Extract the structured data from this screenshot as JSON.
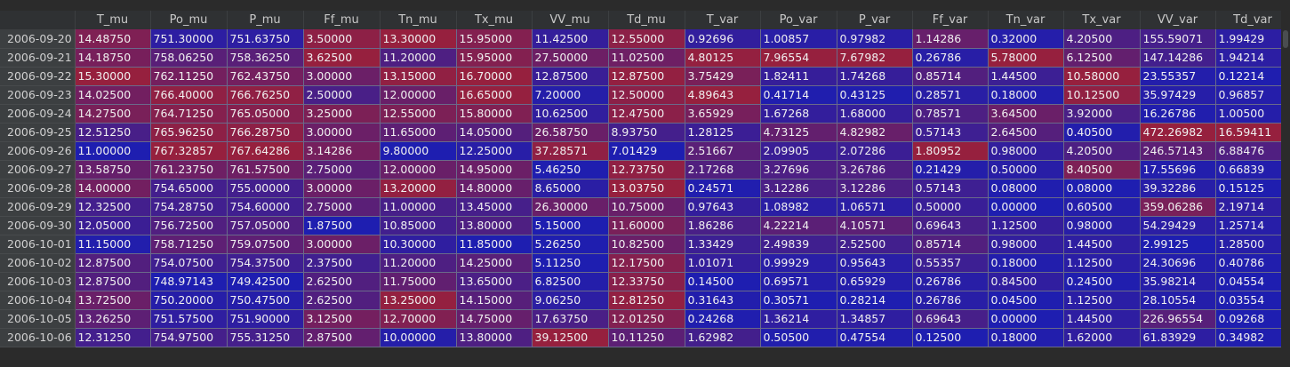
{
  "table": {
    "index_header": "",
    "columns": [
      "T_mu",
      "Po_mu",
      "P_mu",
      "Ff_mu",
      "Tn_mu",
      "Tx_mu",
      "VV_mu",
      "Td_mu",
      "T_var",
      "Po_var",
      "P_var",
      "Ff_var",
      "Tn_var",
      "Tx_var",
      "VV_var",
      "Td_var"
    ],
    "rows": [
      {
        "date": "2006-09-20",
        "values": [
          "14.48750",
          "751.30000",
          "751.63750",
          "3.50000",
          "13.30000",
          "15.95000",
          "11.42500",
          "12.55000",
          "0.92696",
          "1.00857",
          "0.97982",
          "1.14286",
          "0.32000",
          "4.20500",
          "155.59071",
          "1.99429"
        ]
      },
      {
        "date": "2006-09-21",
        "values": [
          "14.18750",
          "758.06250",
          "758.36250",
          "3.62500",
          "11.20000",
          "15.95000",
          "27.50000",
          "11.02500",
          "4.80125",
          "7.96554",
          "7.67982",
          "0.26786",
          "5.78000",
          "6.12500",
          "147.14286",
          "1.94214"
        ]
      },
      {
        "date": "2006-09-22",
        "values": [
          "15.30000",
          "762.11250",
          "762.43750",
          "3.00000",
          "13.15000",
          "16.70000",
          "12.87500",
          "12.87500",
          "3.75429",
          "1.82411",
          "1.74268",
          "0.85714",
          "1.44500",
          "10.58000",
          "23.55357",
          "0.12214"
        ]
      },
      {
        "date": "2006-09-23",
        "values": [
          "14.02500",
          "766.40000",
          "766.76250",
          "2.50000",
          "12.00000",
          "16.65000",
          "7.20000",
          "12.50000",
          "4.89643",
          "0.41714",
          "0.43125",
          "0.28571",
          "0.18000",
          "10.12500",
          "35.97429",
          "0.96857"
        ]
      },
      {
        "date": "2006-09-24",
        "values": [
          "14.27500",
          "764.71250",
          "765.05000",
          "3.25000",
          "12.55000",
          "15.80000",
          "10.62500",
          "12.47500",
          "3.65929",
          "1.67268",
          "1.68000",
          "0.78571",
          "3.64500",
          "3.92000",
          "16.26786",
          "1.00500"
        ]
      },
      {
        "date": "2006-09-25",
        "values": [
          "12.51250",
          "765.96250",
          "766.28750",
          "3.00000",
          "11.65000",
          "14.05000",
          "26.58750",
          "8.93750",
          "1.28125",
          "4.73125",
          "4.82982",
          "0.57143",
          "2.64500",
          "0.40500",
          "472.26982",
          "16.59411"
        ]
      },
      {
        "date": "2006-09-26",
        "values": [
          "11.00000",
          "767.32857",
          "767.64286",
          "3.14286",
          "9.80000",
          "12.25000",
          "37.28571",
          "7.01429",
          "2.51667",
          "2.09905",
          "2.07286",
          "1.80952",
          "0.98000",
          "4.20500",
          "246.57143",
          "6.88476"
        ]
      },
      {
        "date": "2006-09-27",
        "values": [
          "13.58750",
          "761.23750",
          "761.57500",
          "2.75000",
          "12.00000",
          "14.95000",
          "5.46250",
          "12.73750",
          "2.17268",
          "3.27696",
          "3.26786",
          "0.21429",
          "0.50000",
          "8.40500",
          "17.55696",
          "0.66839"
        ]
      },
      {
        "date": "2006-09-28",
        "values": [
          "14.00000",
          "754.65000",
          "755.00000",
          "3.00000",
          "13.20000",
          "14.80000",
          "8.65000",
          "13.03750",
          "0.24571",
          "3.12286",
          "3.12286",
          "0.57143",
          "0.08000",
          "0.08000",
          "39.32286",
          "0.15125"
        ]
      },
      {
        "date": "2006-09-29",
        "values": [
          "12.32500",
          "754.28750",
          "754.60000",
          "2.75000",
          "11.00000",
          "13.45000",
          "26.30000",
          "10.75000",
          "0.97643",
          "1.08982",
          "1.06571",
          "0.50000",
          "0.00000",
          "0.60500",
          "359.06286",
          "2.19714"
        ]
      },
      {
        "date": "2006-09-30",
        "values": [
          "12.05000",
          "756.72500",
          "757.05000",
          "1.87500",
          "10.85000",
          "13.80000",
          "5.15000",
          "11.60000",
          "1.86286",
          "4.22214",
          "4.10571",
          "0.69643",
          "1.12500",
          "0.98000",
          "54.29429",
          "1.25714"
        ]
      },
      {
        "date": "2006-10-01",
        "values": [
          "11.15000",
          "758.71250",
          "759.07500",
          "3.00000",
          "10.30000",
          "11.85000",
          "5.26250",
          "10.82500",
          "1.33429",
          "2.49839",
          "2.52500",
          "0.85714",
          "0.98000",
          "1.44500",
          "2.99125",
          "1.28500"
        ]
      },
      {
        "date": "2006-10-02",
        "values": [
          "12.87500",
          "754.07500",
          "754.37500",
          "2.37500",
          "11.20000",
          "14.25000",
          "5.11250",
          "12.17500",
          "1.01071",
          "0.99929",
          "0.95643",
          "0.55357",
          "0.18000",
          "1.12500",
          "24.30696",
          "0.40786"
        ]
      },
      {
        "date": "2006-10-03",
        "values": [
          "12.87500",
          "748.97143",
          "749.42500",
          "2.62500",
          "11.75000",
          "13.65000",
          "6.82500",
          "12.33750",
          "0.14500",
          "0.69571",
          "0.65929",
          "0.26786",
          "0.84500",
          "0.24500",
          "35.98214",
          "0.04554"
        ]
      },
      {
        "date": "2006-10-04",
        "values": [
          "13.72500",
          "750.20000",
          "750.47500",
          "2.62500",
          "13.25000",
          "14.15000",
          "9.06250",
          "12.81250",
          "0.31643",
          "0.30571",
          "0.28214",
          "0.26786",
          "0.04500",
          "1.12500",
          "28.10554",
          "0.03554"
        ]
      },
      {
        "date": "2006-10-05",
        "values": [
          "13.26250",
          "751.57500",
          "751.90000",
          "3.12500",
          "12.70000",
          "14.75000",
          "17.63750",
          "12.01250",
          "0.24268",
          "1.36214",
          "1.34857",
          "0.69643",
          "0.00000",
          "1.44500",
          "226.96554",
          "0.09268"
        ]
      },
      {
        "date": "2006-10-06",
        "values": [
          "12.31250",
          "754.97500",
          "755.31250",
          "2.87500",
          "10.00000",
          "13.80000",
          "39.12500",
          "10.11250",
          "1.62982",
          "0.50500",
          "0.47554",
          "0.12500",
          "0.18000",
          "1.62000",
          "61.83929",
          "0.34982"
        ]
      }
    ]
  },
  "colors": {
    "background": "#2b2b2b",
    "header_bg": "#2f3133",
    "index_bg": "#3c3f41",
    "low": "#1e1eb0",
    "high": "#96203e"
  }
}
